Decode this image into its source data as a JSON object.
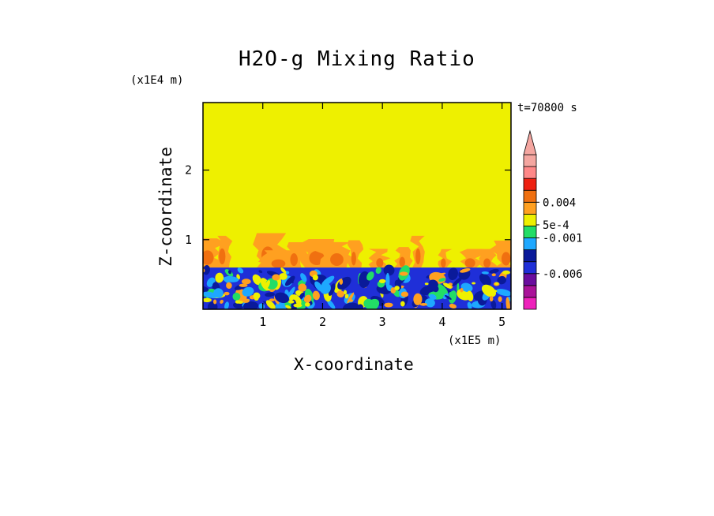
{
  "chart_data": {
    "type": "heatmap",
    "title": "H2O-g Mixing Ratio",
    "xlabel": "X-coordinate",
    "ylabel": "Z-coordinate",
    "x_scale_label": "(x1E5 m)",
    "y_scale_label": "(x1E4 m)",
    "time_label": "t=70800 s",
    "xlim": [
      0,
      5.15
    ],
    "ylim": [
      0,
      2.97
    ],
    "x_ticks": [
      1,
      2,
      3,
      4,
      5
    ],
    "y_ticks": [
      1,
      2
    ],
    "x_tick_labels": [
      "1",
      "2",
      "3",
      "4",
      "5"
    ],
    "y_tick_labels": [
      "1",
      "2"
    ],
    "regions": [
      {
        "name": "upper",
        "z_range": [
          1.05,
          2.97
        ],
        "dominant": "yellow"
      },
      {
        "name": "plume layer",
        "z_range": [
          0.6,
          1.05
        ],
        "dominant": "yellow with orange plumes"
      },
      {
        "name": "lower",
        "z_range": [
          0,
          0.6
        ],
        "dominant": "blue with green/yellow/orange eddies"
      }
    ],
    "colorbar": {
      "colors": [
        "#ee22bb",
        "#aa1299",
        "#6a0d9e",
        "#1f2fd8",
        "#0a1a9a",
        "#1ea8ff",
        "#22dd66",
        "#eef000",
        "#ffa020",
        "#f07010",
        "#ee2010",
        "#ff8888",
        "#f4a6a0"
      ],
      "labels": [
        "0.004",
        "5e-4",
        "-0.001",
        "-0.006"
      ],
      "extend": "max"
    }
  }
}
